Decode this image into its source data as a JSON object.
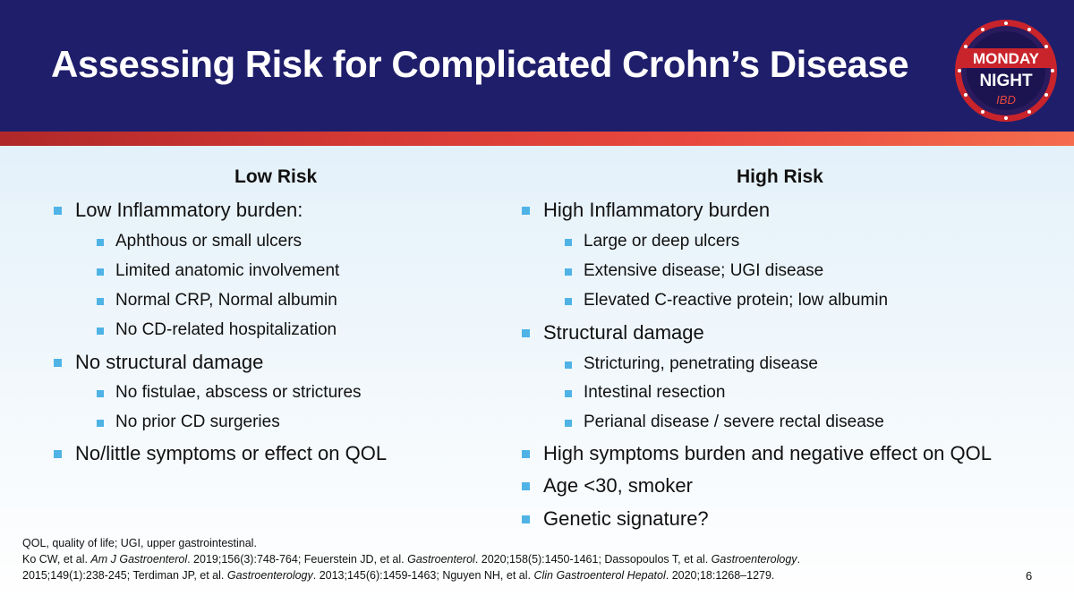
{
  "slide": {
    "title": "Assessing Risk for Complicated Crohn’s Disease",
    "logo": {
      "icon": "monday-night-ibd-logo",
      "line1": "MONDAY",
      "line2": "NIGHT",
      "line3": "IBD"
    },
    "page_number": "6"
  },
  "low_risk": {
    "heading": "Low Risk",
    "items": [
      {
        "level": 1,
        "text": "Low Inflammatory burden:"
      },
      {
        "level": 2,
        "text": "Aphthous or small ulcers"
      },
      {
        "level": 2,
        "text": "Limited anatomic involvement"
      },
      {
        "level": 2,
        "text": "Normal CRP, Normal albumin"
      },
      {
        "level": 2,
        "text": "No CD-related hospitalization"
      },
      {
        "level": 1,
        "text": "No structural damage"
      },
      {
        "level": 2,
        "text": "No fistulae, abscess or strictures"
      },
      {
        "level": 2,
        "text": "No prior CD surgeries"
      },
      {
        "level": 1,
        "text": "No/little symptoms or effect on QOL"
      }
    ]
  },
  "high_risk": {
    "heading": "High Risk",
    "items": [
      {
        "level": 1,
        "text": "High Inflammatory burden"
      },
      {
        "level": 2,
        "text": "Large or deep ulcers"
      },
      {
        "level": 2,
        "text": "Extensive disease; UGI disease"
      },
      {
        "level": 2,
        "text": "Elevated C-reactive protein; low albumin"
      },
      {
        "level": 1,
        "text": "Structural damage"
      },
      {
        "level": 2,
        "text": "Stricturing, penetrating disease"
      },
      {
        "level": 2,
        "text": "Intestinal resection"
      },
      {
        "level": 2,
        "text": "Perianal disease / severe rectal disease"
      },
      {
        "level": 1,
        "text": "High symptoms burden and negative effect on QOL"
      },
      {
        "level": 1,
        "text": "Age <30, smoker"
      },
      {
        "level": 1,
        "text": "Genetic signature?"
      }
    ]
  },
  "footnotes": {
    "abbreviations": "QOL, quality of life; UGI, upper gastrointestinal.",
    "references": [
      {
        "plain": "Ko CW, et al. ",
        "journal": "Am J Gastroenterol",
        "cite": ". 2019;156(3):748-764; "
      },
      {
        "plain": "Feuerstein JD, et al. ",
        "journal": "Gastroenterol",
        "cite": ". 2020;158(5):1450-1461; "
      },
      {
        "plain": "Dassopoulos T, et al. ",
        "journal": "Gastroenterology",
        "cite": "."
      },
      {
        "plain": "2015;149(1):238-245; Terdiman JP, et al. ",
        "journal": "Gastroenterology",
        "cite": ". 2013;145(6):1459-1463; "
      },
      {
        "plain": "Nguyen NH, et al. ",
        "journal": "Clin Gastroenterol Hepatol",
        "cite": ". 2020;18:1268–1279."
      }
    ]
  }
}
